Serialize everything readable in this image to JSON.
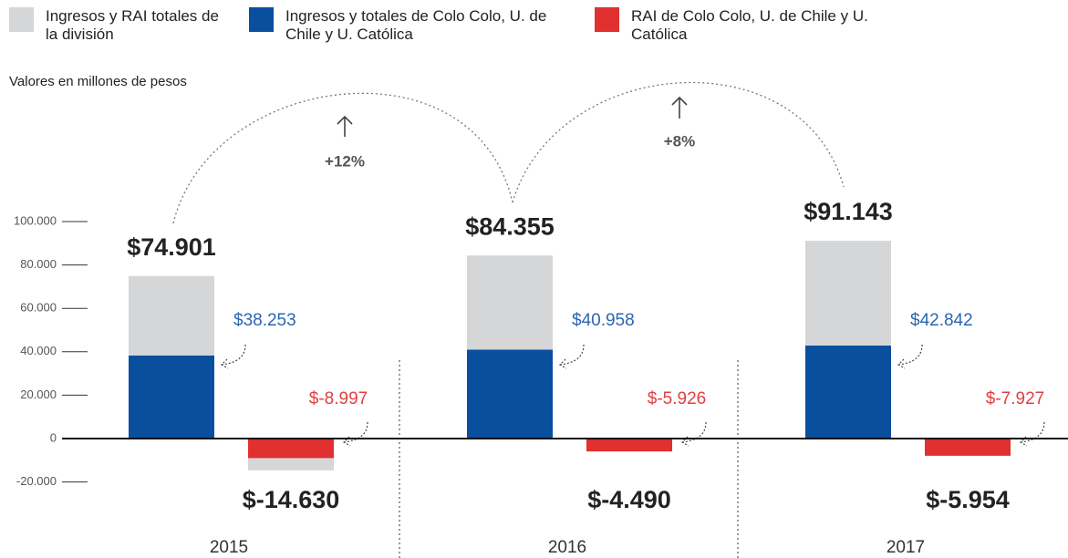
{
  "chart_data": {
    "type": "bar",
    "subtitle": "Valores en millones de pesos",
    "categories": [
      "2015",
      "2016",
      "2017"
    ],
    "series": [
      {
        "name": "Ingresos y RAI totales de la división",
        "color": "#d5d6d8",
        "values": [
          74901,
          84355,
          91143
        ],
        "value_labels": [
          "$74.901",
          "$84.355",
          "$91.143"
        ],
        "rai_values": [
          -14630,
          -4490,
          -5954
        ],
        "rai_value_labels": [
          "$-14.630",
          "$-4.490",
          "$-5.954"
        ]
      },
      {
        "name": "Ingresos y totales de Colo Colo, U. de Chile y U. Católica",
        "color": "#0a4f9e",
        "values": [
          38253,
          40958,
          42842
        ],
        "value_labels": [
          "$38.253",
          "$40.958",
          "$42.842"
        ]
      },
      {
        "name": "RAI de Colo Colo, U. de Chile y U. Católica",
        "color": "#e0302f",
        "values": [
          -8997,
          -5926,
          -7927
        ],
        "value_labels": [
          "$-8.997",
          "$-5.926",
          "$-7.927"
        ]
      }
    ],
    "annotations": [
      "+12%",
      "+8%"
    ],
    "ylim": [
      -30000,
      100000
    ],
    "yticks": [
      {
        "value": 100000,
        "label": "100.000"
      },
      {
        "value": 80000,
        "label": "80.000"
      },
      {
        "value": 60000,
        "label": "60.000"
      },
      {
        "value": 40000,
        "label": "40.000"
      },
      {
        "value": 20000,
        "label": "20.000"
      },
      0,
      {
        "value": -20000,
        "label": "-20.000"
      }
    ]
  }
}
